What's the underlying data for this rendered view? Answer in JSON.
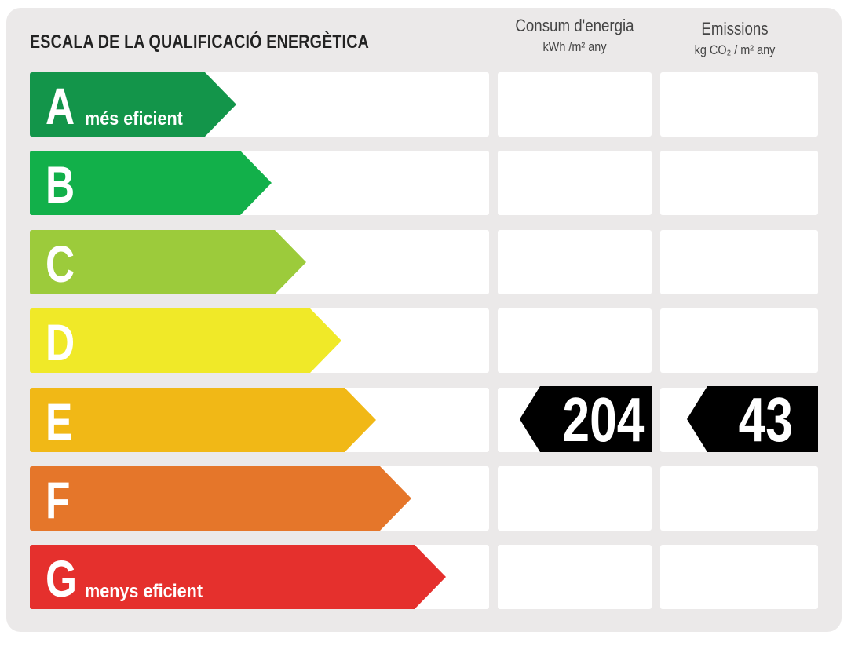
{
  "title": "ESCALA DE LA QUALIFICACIÓ ENERGÈTICA",
  "columns": {
    "energy": {
      "title": "Consum d'energia",
      "unit": "kWh /m² any"
    },
    "emissions": {
      "title": "Emissions",
      "unit": "kg CO₂ / m² any"
    }
  },
  "ratings": [
    {
      "letter": "A",
      "label": "més eficient",
      "color": "#13954a"
    },
    {
      "letter": "B",
      "label": "",
      "color": "#12b04a"
    },
    {
      "letter": "C",
      "label": "",
      "color": "#9ccb3b"
    },
    {
      "letter": "D",
      "label": "",
      "color": "#f0e928"
    },
    {
      "letter": "E",
      "label": "",
      "color": "#f1b816"
    },
    {
      "letter": "F",
      "label": "",
      "color": "#e5762a"
    },
    {
      "letter": "G",
      "label": "menys eficient",
      "color": "#e5302d"
    }
  ],
  "result": {
    "rating": "E",
    "energy": "204",
    "emissions": "43"
  }
}
